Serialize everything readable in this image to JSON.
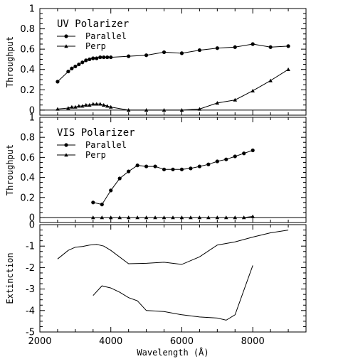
{
  "chart_data": [
    {
      "type": "line",
      "title": "UV Polarizer",
      "xlabel": "",
      "ylabel": "Throughput",
      "xlim": [
        2000,
        9500
      ],
      "ylim": [
        -0.05,
        1.0
      ],
      "yticks": [
        "0",
        "0.2",
        "0.4",
        "0.6",
        "0.8",
        "1"
      ],
      "ytick_values": [
        0,
        0.2,
        0.4,
        0.6,
        0.8,
        1.0
      ],
      "legend_position": "top-left",
      "zero_line": true,
      "series": [
        {
          "name": "Parallel",
          "marker": "circle",
          "x": [
            2500,
            2800,
            2900,
            3000,
            3100,
            3200,
            3300,
            3400,
            3500,
            3600,
            3700,
            3800,
            3900,
            4000,
            4500,
            5000,
            5500,
            6000,
            6500,
            7000,
            7500,
            8000,
            8500,
            9000
          ],
          "y": [
            0.28,
            0.38,
            0.41,
            0.43,
            0.45,
            0.47,
            0.49,
            0.5,
            0.51,
            0.51,
            0.52,
            0.52,
            0.52,
            0.52,
            0.53,
            0.54,
            0.57,
            0.56,
            0.59,
            0.61,
            0.62,
            0.65,
            0.62,
            0.63
          ]
        },
        {
          "name": "Perp",
          "marker": "triangle",
          "x": [
            2500,
            2800,
            2900,
            3000,
            3100,
            3200,
            3300,
            3400,
            3500,
            3600,
            3700,
            3800,
            3900,
            4000,
            4500,
            5000,
            5500,
            6000,
            6500,
            7000,
            7500,
            8000,
            8500,
            9000
          ],
          "y": [
            0.01,
            0.02,
            0.03,
            0.03,
            0.04,
            0.04,
            0.05,
            0.05,
            0.06,
            0.06,
            0.06,
            0.05,
            0.04,
            0.03,
            0.0,
            0.0,
            0.0,
            0.0,
            0.01,
            0.07,
            0.1,
            0.19,
            0.29,
            0.4
          ]
        }
      ]
    },
    {
      "type": "line",
      "title": "VIS Polarizer",
      "xlabel": "",
      "ylabel": "Throughput",
      "xlim": [
        2000,
        9500
      ],
      "ylim": [
        -0.05,
        1.0
      ],
      "yticks": [
        "0",
        "0.2",
        "0.4",
        "0.6",
        "0.8",
        "1"
      ],
      "ytick_values": [
        0,
        0.2,
        0.4,
        0.6,
        0.8,
        1.0
      ],
      "legend_position": "top-left",
      "zero_line": true,
      "series": [
        {
          "name": "Parallel",
          "marker": "circle",
          "x": [
            3500,
            3750,
            4000,
            4250,
            4500,
            4750,
            5000,
            5250,
            5500,
            5750,
            6000,
            6250,
            6500,
            6750,
            7000,
            7250,
            7500,
            7750,
            8000
          ],
          "y": [
            0.15,
            0.13,
            0.27,
            0.39,
            0.46,
            0.52,
            0.51,
            0.51,
            0.48,
            0.48,
            0.48,
            0.49,
            0.51,
            0.53,
            0.56,
            0.58,
            0.61,
            0.64,
            0.67
          ]
        },
        {
          "name": "Perp",
          "marker": "triangle",
          "x": [
            3500,
            3750,
            4000,
            4250,
            4500,
            4750,
            5000,
            5250,
            5500,
            5750,
            6000,
            6250,
            6500,
            6750,
            7000,
            7250,
            7500,
            7750,
            8000
          ],
          "y": [
            0.0,
            0.0,
            0.0,
            0.0,
            0.0,
            0.0,
            0.0,
            0.0,
            0.0,
            0.0,
            0.0,
            0.0,
            0.0,
            0.0,
            0.0,
            0.0,
            0.0,
            0.0,
            0.01
          ]
        }
      ]
    },
    {
      "type": "line",
      "title": "",
      "xlabel": "Wavelength (Å)",
      "ylabel": "Extinction",
      "xlim": [
        2000,
        9500
      ],
      "ylim": [
        -5,
        0
      ],
      "xticks": [
        "2000",
        "4000",
        "6000",
        "8000"
      ],
      "xtick_values": [
        2000,
        4000,
        6000,
        8000
      ],
      "yticks": [
        "-5",
        "-4",
        "-3",
        "-2",
        "-1",
        "0"
      ],
      "ytick_values": [
        -5,
        -4,
        -3,
        -2,
        -1,
        0
      ],
      "series": [
        {
          "marker": "none",
          "x": [
            2500,
            2800,
            3000,
            3200,
            3400,
            3600,
            3800,
            4000,
            4500,
            5000,
            5500,
            6000,
            6500,
            7000,
            7500,
            8000,
            8500,
            9000
          ],
          "y": [
            -1.6,
            -1.2,
            -1.05,
            -1.02,
            -0.95,
            -0.92,
            -1.0,
            -1.2,
            -1.82,
            -1.8,
            -1.75,
            -1.85,
            -1.5,
            -0.95,
            -0.8,
            -0.58,
            -0.38,
            -0.25
          ]
        },
        {
          "marker": "none",
          "x": [
            3500,
            3750,
            4000,
            4250,
            4500,
            4750,
            5000,
            5500,
            6000,
            6500,
            7000,
            7250,
            7500,
            8000
          ],
          "y": [
            -3.3,
            -2.85,
            -2.95,
            -3.15,
            -3.4,
            -3.55,
            -4.0,
            -4.05,
            -4.2,
            -4.3,
            -4.35,
            -4.45,
            -4.2,
            -1.9
          ]
        }
      ]
    }
  ]
}
